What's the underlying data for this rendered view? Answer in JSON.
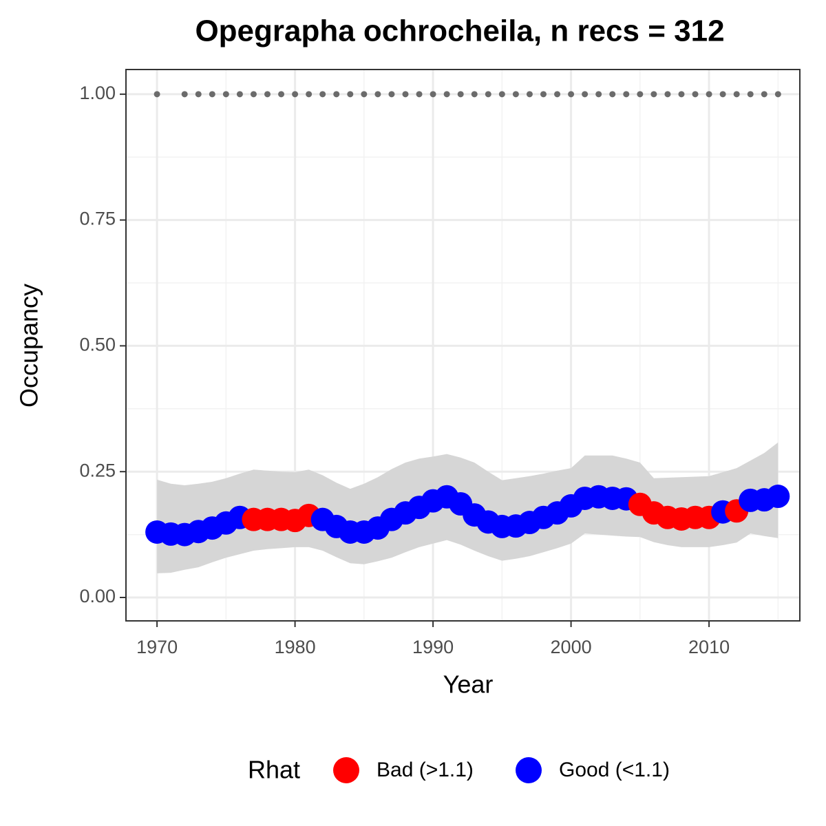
{
  "chart_data": {
    "type": "scatter",
    "title": "Opegrapha ochrocheila, n recs = 312",
    "xlabel": "Year",
    "ylabel": "Occupancy",
    "x": [
      1970,
      1971,
      1972,
      1973,
      1974,
      1975,
      1976,
      1977,
      1978,
      1979,
      1980,
      1981,
      1982,
      1983,
      1984,
      1985,
      1986,
      1987,
      1988,
      1989,
      1990,
      1991,
      1992,
      1993,
      1994,
      1995,
      1996,
      1997,
      1998,
      1999,
      2000,
      2001,
      2002,
      2003,
      2004,
      2005,
      2006,
      2007,
      2008,
      2009,
      2010,
      2011,
      2012,
      2013,
      2014,
      2015
    ],
    "values": [
      0.13,
      0.126,
      0.125,
      0.131,
      0.138,
      0.148,
      0.159,
      0.155,
      0.155,
      0.155,
      0.153,
      0.163,
      0.155,
      0.141,
      0.13,
      0.13,
      0.138,
      0.155,
      0.168,
      0.179,
      0.192,
      0.2,
      0.186,
      0.164,
      0.15,
      0.141,
      0.142,
      0.149,
      0.159,
      0.168,
      0.182,
      0.197,
      0.2,
      0.197,
      0.196,
      0.185,
      0.168,
      0.159,
      0.156,
      0.159,
      0.159,
      0.17,
      0.172,
      0.193,
      0.194,
      0.201
    ],
    "lower": [
      0.048,
      0.049,
      0.055,
      0.06,
      0.07,
      0.079,
      0.086,
      0.093,
      0.096,
      0.098,
      0.1,
      0.1,
      0.093,
      0.08,
      0.068,
      0.066,
      0.072,
      0.079,
      0.09,
      0.1,
      0.107,
      0.114,
      0.105,
      0.093,
      0.082,
      0.073,
      0.077,
      0.082,
      0.09,
      0.098,
      0.107,
      0.127,
      0.125,
      0.123,
      0.121,
      0.12,
      0.11,
      0.104,
      0.1,
      0.1,
      0.1,
      0.104,
      0.109,
      0.127,
      0.122,
      0.118
    ],
    "upper": [
      0.234,
      0.226,
      0.223,
      0.226,
      0.23,
      0.237,
      0.246,
      0.254,
      0.252,
      0.25,
      0.249,
      0.254,
      0.243,
      0.228,
      0.216,
      0.226,
      0.239,
      0.255,
      0.268,
      0.276,
      0.28,
      0.285,
      0.278,
      0.268,
      0.25,
      0.233,
      0.237,
      0.241,
      0.246,
      0.252,
      0.257,
      0.282,
      0.282,
      0.282,
      0.276,
      0.268,
      0.237,
      0.238,
      0.239,
      0.24,
      0.241,
      0.249,
      0.257,
      0.272,
      0.287,
      0.308
    ],
    "rhat": [
      "Good (<1.1)",
      "Good (<1.1)",
      "Good (<1.1)",
      "Good (<1.1)",
      "Good (<1.1)",
      "Good (<1.1)",
      "Good (<1.1)",
      "Bad (>1.1)",
      "Bad (>1.1)",
      "Bad (>1.1)",
      "Bad (>1.1)",
      "Bad (>1.1)",
      "Good (<1.1)",
      "Good (<1.1)",
      "Good (<1.1)",
      "Good (<1.1)",
      "Good (<1.1)",
      "Good (<1.1)",
      "Good (<1.1)",
      "Good (<1.1)",
      "Good (<1.1)",
      "Good (<1.1)",
      "Good (<1.1)",
      "Good (<1.1)",
      "Good (<1.1)",
      "Good (<1.1)",
      "Good (<1.1)",
      "Good (<1.1)",
      "Good (<1.1)",
      "Good (<1.1)",
      "Good (<1.1)",
      "Good (<1.1)",
      "Good (<1.1)",
      "Good (<1.1)",
      "Good (<1.1)",
      "Bad (>1.1)",
      "Bad (>1.1)",
      "Bad (>1.1)",
      "Bad (>1.1)",
      "Bad (>1.1)",
      "Bad (>1.1)",
      "Good (<1.1)",
      "Bad (>1.1)",
      "Good (<1.1)",
      "Good (<1.1)",
      "Good (<1.1)"
    ],
    "reference_points": [
      1,
      null,
      1,
      1,
      1,
      1,
      1,
      1,
      1,
      1,
      1,
      1,
      1,
      1,
      1,
      1,
      1,
      1,
      1,
      1,
      1,
      1,
      1,
      1,
      1,
      1,
      1,
      1,
      1,
      1,
      1,
      1,
      1,
      1,
      1,
      1,
      1,
      1,
      1,
      1,
      1,
      1,
      1,
      1,
      1,
      1
    ],
    "reference_color": "#6b6b6b",
    "ribbon_color": "#d6d6d6",
    "legend": {
      "title": "Rhat",
      "position": "bottom",
      "entries": [
        {
          "name": "Bad (>1.1)",
          "color": "#ff0000"
        },
        {
          "name": "Good (<1.1)",
          "color": "#0000ff"
        }
      ]
    },
    "xlim": [
      1967.75,
      2016.58
    ],
    "ylim": [
      -0.0465,
      1.049
    ],
    "xticks": [
      1970,
      1980,
      1990,
      2000,
      2010
    ],
    "yticks": [
      {
        "value": 0,
        "label": "0.00"
      },
      {
        "value": 0.25,
        "label": "0.25"
      },
      {
        "value": 0.5,
        "label": "0.50"
      },
      {
        "value": 0.75,
        "label": "0.75"
      },
      {
        "value": 1,
        "label": "1.00"
      }
    ],
    "xminor": [
      1975,
      1985,
      1995,
      2005,
      2015
    ],
    "yminor": [
      0.125,
      0.375,
      0.625,
      0.875
    ],
    "grid": true
  }
}
